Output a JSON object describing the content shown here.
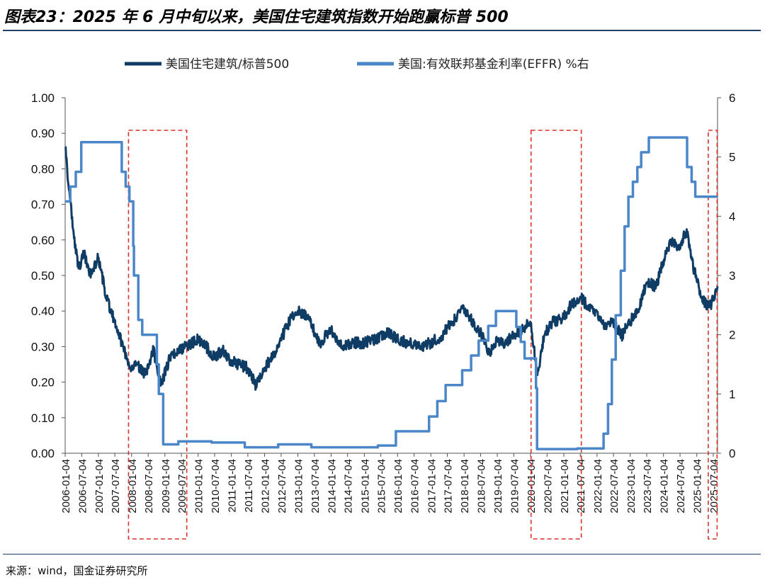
{
  "title": "图表23：2025 年 6 月中旬以来，美国住宅建筑指数开始跑赢标普 500",
  "source": "来源：wind，国金证券研究所",
  "colors": {
    "series1": "#0f3c64",
    "series2": "#4a86c8",
    "highlight": "#d9332a",
    "title_rule": "#1f3f66"
  },
  "chart_data": {
    "type": "line",
    "legend_position": "top",
    "grid": false,
    "y_left_range": [
      0,
      1.0
    ],
    "y_left_ticks": [
      "0.00",
      "0.10",
      "0.20",
      "0.30",
      "0.40",
      "0.50",
      "0.60",
      "0.70",
      "0.80",
      "0.90",
      "1.00"
    ],
    "y_right_range": [
      0,
      6
    ],
    "y_right_ticks": [
      "0",
      "1",
      "2",
      "3",
      "4",
      "5",
      "6"
    ],
    "x_range": [
      "2006-01-04",
      "2025-08-20"
    ],
    "x_ticks": [
      "2006-01-04",
      "2006-07-04",
      "2007-01-04",
      "2007-07-04",
      "2008-01-04",
      "2008-07-04",
      "2009-01-04",
      "2009-07-04",
      "2010-01-04",
      "2010-07-04",
      "2011-01-04",
      "2011-07-04",
      "2012-01-04",
      "2012-07-04",
      "2013-01-04",
      "2013-07-04",
      "2014-01-04",
      "2014-07-04",
      "2015-01-04",
      "2015-07-04",
      "2016-01-04",
      "2016-07-04",
      "2017-01-04",
      "2017-07-04",
      "2018-01-04",
      "2018-07-04",
      "2019-01-04",
      "2019-07-04",
      "2020-01-04",
      "2020-07-04",
      "2021-01-04",
      "2021-07-04",
      "2022-01-04",
      "2022-07-04",
      "2023-01-04",
      "2023-07-04",
      "2024-01-04",
      "2024-07-04",
      "2025-01-04",
      "2025-07-04"
    ],
    "series": [
      {
        "name": "美国住宅建筑/标普500",
        "axis": "left",
        "x": [
          "2006-01-04",
          "2006-02-15",
          "2006-04-01",
          "2006-06-01",
          "2006-08-01",
          "2006-10-01",
          "2007-01-01",
          "2007-04-01",
          "2007-07-01",
          "2007-10-01",
          "2008-01-01",
          "2008-03-01",
          "2008-06-01",
          "2008-09-01",
          "2008-11-20",
          "2009-03-01",
          "2009-06-01",
          "2009-09-01",
          "2010-01-01",
          "2010-04-01",
          "2010-07-01",
          "2010-10-01",
          "2011-01-01",
          "2011-04-01",
          "2011-07-01",
          "2011-10-01",
          "2012-01-01",
          "2012-04-01",
          "2012-07-01",
          "2012-10-01",
          "2013-01-01",
          "2013-05-01",
          "2013-09-01",
          "2014-01-01",
          "2014-05-01",
          "2014-09-01",
          "2015-01-01",
          "2015-05-01",
          "2015-09-01",
          "2016-01-01",
          "2016-05-01",
          "2016-09-01",
          "2017-01-01",
          "2017-05-01",
          "2017-09-01",
          "2018-01-01",
          "2018-04-01",
          "2018-07-01",
          "2018-10-15",
          "2019-01-01",
          "2019-04-01",
          "2019-07-01",
          "2019-10-01",
          "2020-01-01",
          "2020-03-20",
          "2020-06-01",
          "2020-09-01",
          "2021-01-01",
          "2021-04-01",
          "2021-07-01",
          "2021-10-01",
          "2022-01-01",
          "2022-04-01",
          "2022-07-01",
          "2022-10-01",
          "2023-01-01",
          "2023-04-01",
          "2023-07-01",
          "2023-10-15",
          "2024-01-01",
          "2024-04-01",
          "2024-07-01",
          "2024-09-15",
          "2024-11-01",
          "2025-01-01",
          "2025-03-01",
          "2025-04-15",
          "2025-06-15",
          "2025-08-20"
        ],
        "values": [
          0.86,
          0.74,
          0.63,
          0.52,
          0.56,
          0.5,
          0.55,
          0.44,
          0.37,
          0.3,
          0.24,
          0.25,
          0.22,
          0.29,
          0.19,
          0.27,
          0.29,
          0.3,
          0.32,
          0.3,
          0.27,
          0.29,
          0.26,
          0.25,
          0.24,
          0.19,
          0.24,
          0.27,
          0.32,
          0.37,
          0.4,
          0.38,
          0.31,
          0.35,
          0.3,
          0.31,
          0.31,
          0.32,
          0.34,
          0.32,
          0.31,
          0.3,
          0.31,
          0.33,
          0.37,
          0.41,
          0.37,
          0.34,
          0.28,
          0.32,
          0.31,
          0.33,
          0.35,
          0.37,
          0.22,
          0.33,
          0.37,
          0.38,
          0.42,
          0.44,
          0.41,
          0.4,
          0.35,
          0.37,
          0.33,
          0.37,
          0.4,
          0.48,
          0.47,
          0.54,
          0.6,
          0.58,
          0.63,
          0.55,
          0.49,
          0.44,
          0.42,
          0.42,
          0.47
        ]
      },
      {
        "name": "美国:有效联邦基金利率(EFFR) %右",
        "axis": "right",
        "x": [
          "2006-01-04",
          "2006-03-01",
          "2006-05-01",
          "2006-06-30",
          "2007-09-18",
          "2007-10-31",
          "2007-12-11",
          "2008-01-22",
          "2008-01-30",
          "2008-03-18",
          "2008-04-30",
          "2008-10-08",
          "2008-10-29",
          "2008-12-16",
          "2009-06-01",
          "2010-06-01",
          "2011-06-01",
          "2012-06-01",
          "2013-06-01",
          "2014-06-01",
          "2015-06-01",
          "2015-12-17",
          "2016-12-15",
          "2017-03-16",
          "2017-06-15",
          "2017-12-14",
          "2018-03-22",
          "2018-06-14",
          "2018-09-27",
          "2018-12-20",
          "2019-08-01",
          "2019-09-19",
          "2019-10-31",
          "2020-03-04",
          "2020-03-16",
          "2021-06-01",
          "2022-03-17",
          "2022-05-05",
          "2022-06-16",
          "2022-07-28",
          "2022-09-22",
          "2022-11-03",
          "2022-12-15",
          "2023-02-02",
          "2023-03-23",
          "2023-05-04",
          "2023-07-27",
          "2024-09-19",
          "2024-11-08",
          "2024-12-19",
          "2025-08-20"
        ],
        "values": [
          4.25,
          4.5,
          4.75,
          5.25,
          4.75,
          4.5,
          4.25,
          3.5,
          3.0,
          2.25,
          2.0,
          1.5,
          1.0,
          0.15,
          0.2,
          0.18,
          0.1,
          0.15,
          0.1,
          0.1,
          0.13,
          0.37,
          0.62,
          0.88,
          1.15,
          1.4,
          1.65,
          1.9,
          2.15,
          2.4,
          2.13,
          1.88,
          1.6,
          1.1,
          0.07,
          0.08,
          0.33,
          0.83,
          1.58,
          2.33,
          3.08,
          3.83,
          4.33,
          4.58,
          4.83,
          5.08,
          5.33,
          4.83,
          4.58,
          4.33,
          4.33
        ]
      }
    ],
    "highlights": [
      {
        "from": "2007-12-01",
        "to": "2009-09-01"
      },
      {
        "from": "2020-01-10",
        "to": "2021-07-15"
      },
      {
        "from": "2025-05-10",
        "to": "2025-08-15"
      }
    ]
  }
}
